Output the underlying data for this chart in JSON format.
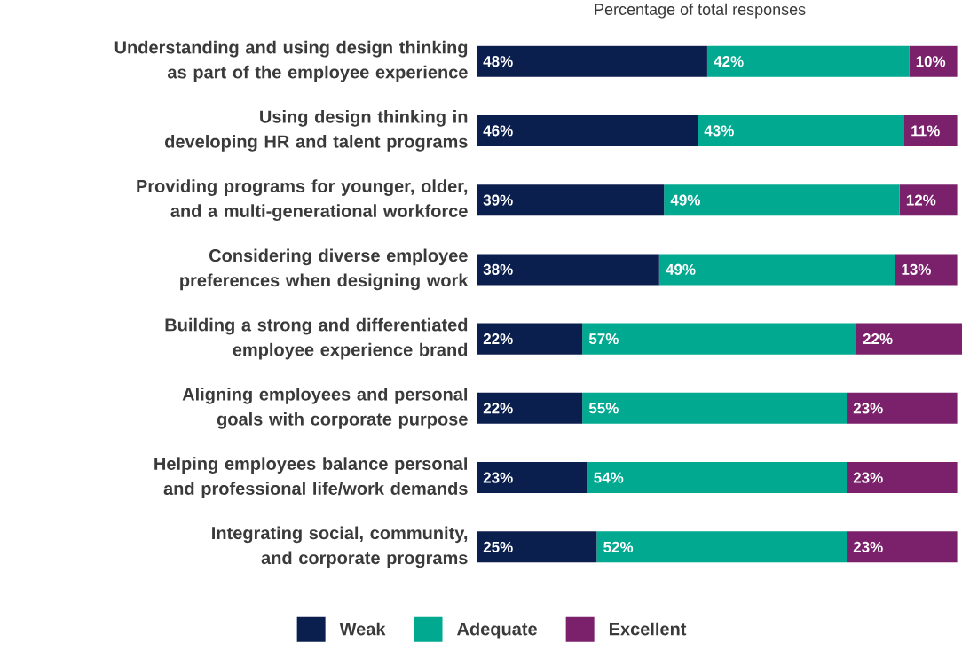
{
  "chart_data": {
    "type": "bar",
    "orientation": "horizontal",
    "stacked": true,
    "data_labels": true,
    "legend": "bottom",
    "xlabel": "Percentage of total responses",
    "categories": [
      "Understanding and using design thinking as part of the employee experience",
      "Using design thinking in developing HR and talent programs",
      "Providing programs for younger, older, and a multi-generational workforce",
      "Considering diverse employee preferences when designing work",
      "Building a strong and differentiated employee experience brand",
      "Aligning employees and personal goals with corporate purpose",
      "Helping employees balance personal and professional life/work demands",
      "Integrating social, community, and corporate programs"
    ],
    "series": [
      {
        "name": "Weak",
        "color": "#0b1f4e",
        "values": [
          48,
          46,
          39,
          38,
          22,
          22,
          23,
          25
        ],
        "value_labels": [
          "48%",
          "46%",
          "39%",
          "38%",
          "22%",
          "22%",
          "23%",
          "25%"
        ]
      },
      {
        "name": "Adequate",
        "color": "#00a98f",
        "values": [
          42,
          43,
          49,
          49,
          57,
          55,
          54,
          52
        ],
        "value_labels": [
          "42%",
          "43%",
          "49%",
          "49%",
          "57%",
          "55%",
          "54%",
          "52%"
        ]
      },
      {
        "name": "Excellent",
        "color": "#7b216b",
        "values": [
          10,
          11,
          12,
          13,
          22,
          23,
          23,
          23
        ],
        "value_labels": [
          "10%",
          "11%",
          "12%",
          "13%",
          "22%",
          "23%",
          "23%",
          "23%"
        ]
      }
    ]
  }
}
